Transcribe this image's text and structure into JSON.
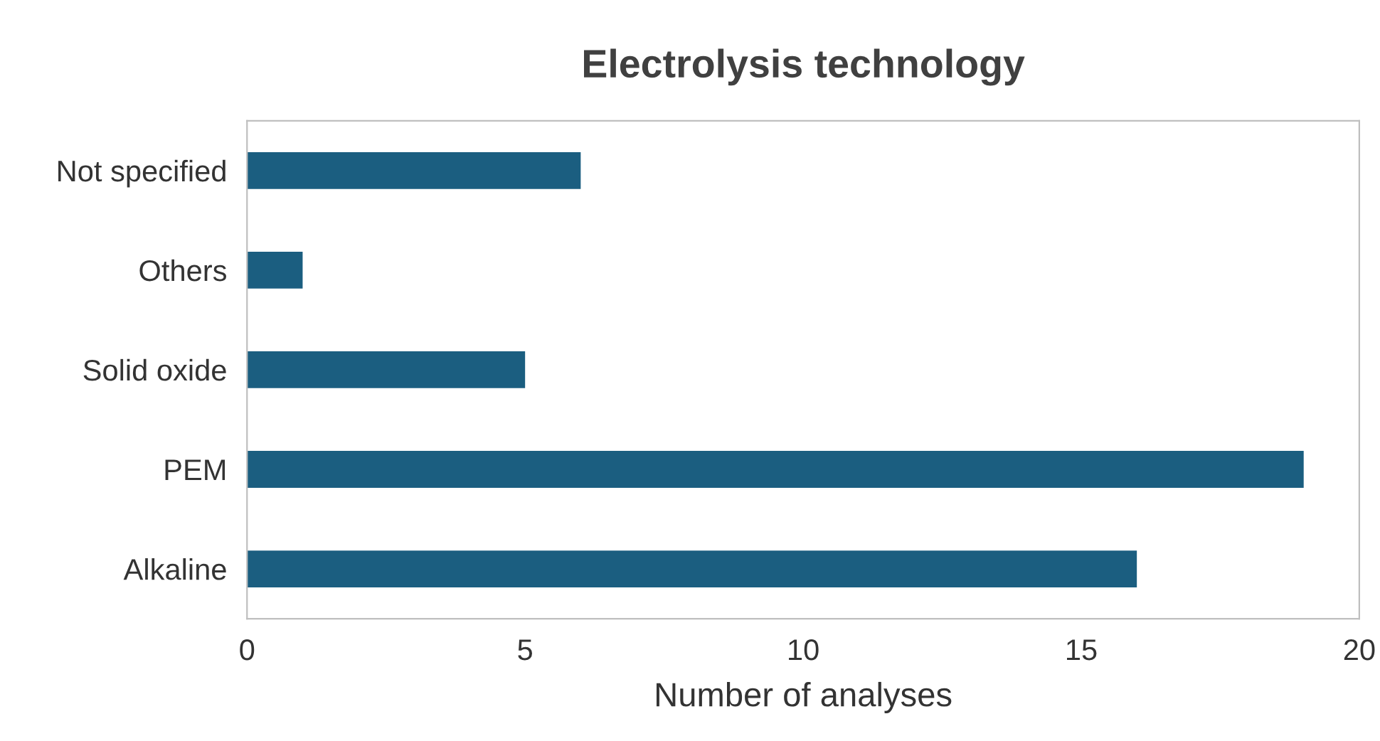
{
  "chart_data": {
    "type": "bar",
    "title": "Electrolysis technology",
    "xlabel": "Number of analyses",
    "orientation": "horizontal",
    "categories": [
      "Not specified",
      "Others",
      "Solid oxide",
      "PEM",
      "Alkaline"
    ],
    "values": [
      6,
      1,
      5,
      19,
      16
    ],
    "color": "#1b5e80",
    "xlim": [
      0,
      20
    ],
    "xticks": [
      0,
      5,
      10,
      15,
      20
    ],
    "grid": false,
    "legend": false
  }
}
